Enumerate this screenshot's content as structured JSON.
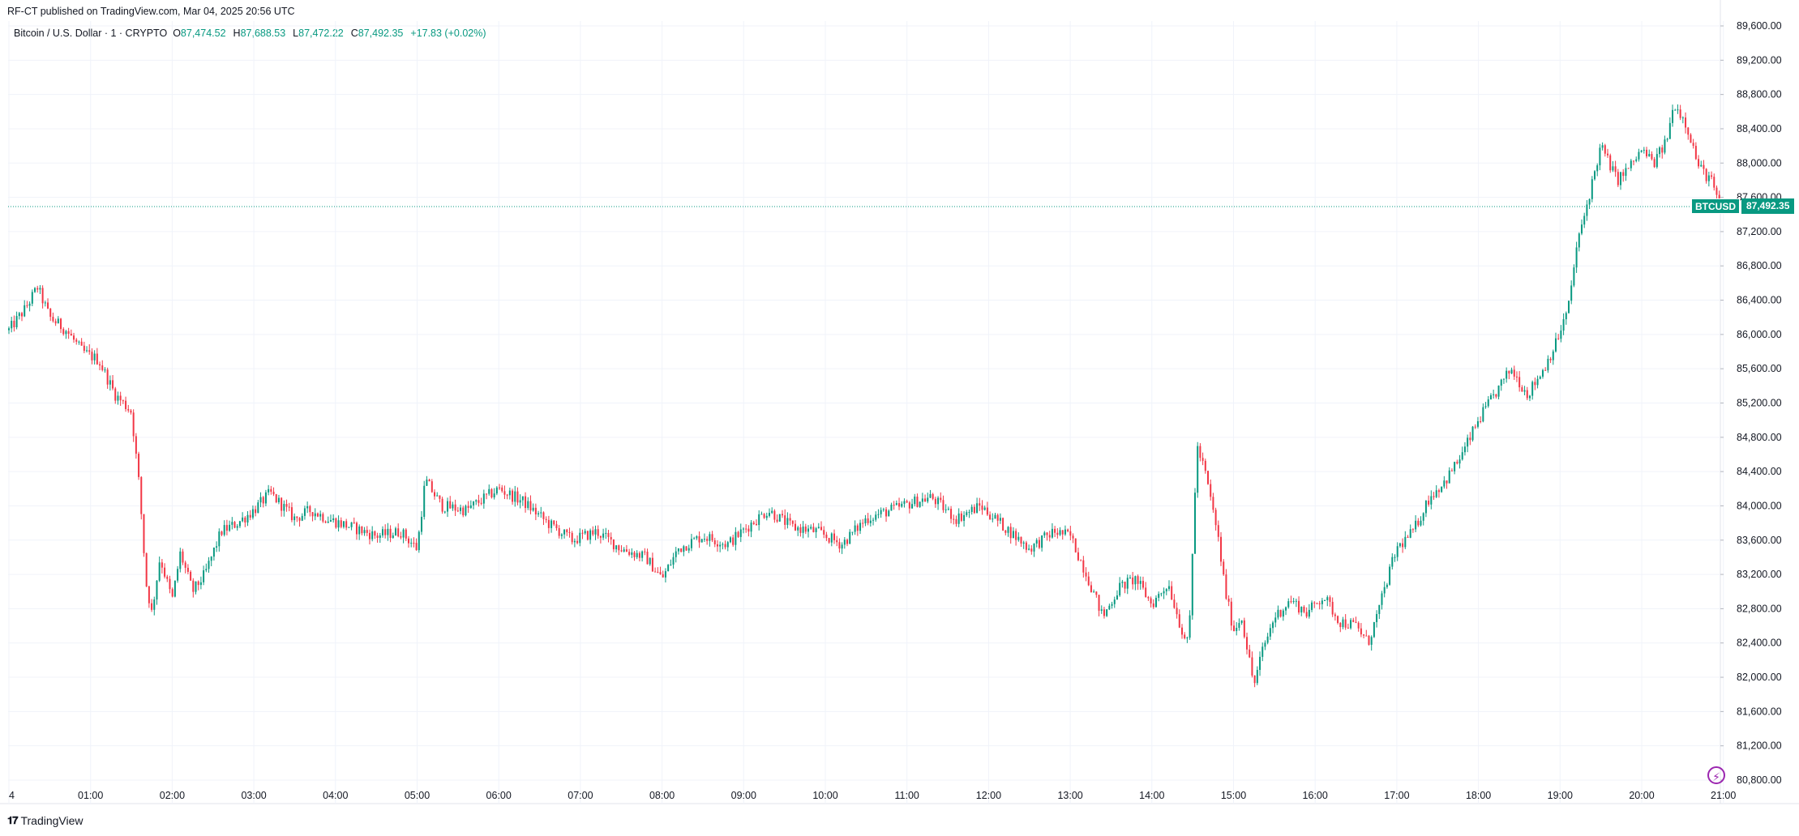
{
  "header": {
    "published": "RF-CT published on TradingView.com, Mar 04, 2025 20:56 UTC"
  },
  "legend": {
    "symbol": "Bitcoin / U.S. Dollar · 1 · CRYPTO",
    "o_label": "O",
    "o_value": "87,474.52",
    "h_label": "H",
    "h_value": "87,688.53",
    "l_label": "L",
    "l_value": "87,472.22",
    "c_label": "C",
    "c_value": "87,492.35",
    "change": "+17.83 (+0.02%)"
  },
  "price_badge": {
    "symbol": "BTCUSD",
    "price": "87,492.35"
  },
  "brand": {
    "name": "TradingView",
    "logo_icon": "tradingview-logo-icon"
  },
  "colors": {
    "up": "#089981",
    "down": "#f23645",
    "grid": "#f0f3fa",
    "text": "#131722",
    "accent": "#9c27b0"
  },
  "chart_data": {
    "type": "candlestick",
    "symbol": "BTCUSD",
    "interval": "1",
    "ylim": [
      80800,
      89600
    ],
    "y_ticks": [
      "80,800.00",
      "81,200.00",
      "81,600.00",
      "82,000.00",
      "82,400.00",
      "82,800.00",
      "83,200.00",
      "83,600.00",
      "84,000.00",
      "84,400.00",
      "84,800.00",
      "85,200.00",
      "85,600.00",
      "86,000.00",
      "86,400.00",
      "86,800.00",
      "87,200.00",
      "87,600.00",
      "88,000.00",
      "88,400.00",
      "88,800.00",
      "89,200.00",
      "89,600.00"
    ],
    "x_ticks": [
      "4",
      "01:00",
      "02:00",
      "03:00",
      "04:00",
      "05:00",
      "06:00",
      "07:00",
      "08:00",
      "09:00",
      "10:00",
      "11:00",
      "12:00",
      "13:00",
      "14:00",
      "15:00",
      "16:00",
      "17:00",
      "18:00",
      "19:00",
      "20:00",
      "21:00"
    ],
    "x_tick_hours": [
      0,
      1,
      2,
      3,
      4,
      5,
      6,
      7,
      8,
      9,
      10,
      11,
      12,
      13,
      14,
      15,
      16,
      17,
      18,
      19,
      20,
      21
    ],
    "last_price": 87492.35,
    "grid": true,
    "path_hours": [
      0,
      0.2,
      0.35,
      0.5,
      0.7,
      0.9,
      1.1,
      1.3,
      1.5,
      1.6,
      1.68,
      1.75,
      1.85,
      2.0,
      2.1,
      2.25,
      2.4,
      2.6,
      2.8,
      3.0,
      3.2,
      3.5,
      3.7,
      3.9,
      4.2,
      4.5,
      4.8,
      5.0,
      5.1,
      5.3,
      5.6,
      6.0,
      6.3,
      6.6,
      6.9,
      7.2,
      7.5,
      7.8,
      8.0,
      8.2,
      8.5,
      8.8,
      9.1,
      9.3,
      9.6,
      9.9,
      10.2,
      10.5,
      10.8,
      11.1,
      11.3,
      11.6,
      11.9,
      12.2,
      12.5,
      12.8,
      13.0,
      13.2,
      13.4,
      13.6,
      13.8,
      14.0,
      14.2,
      14.35,
      14.45,
      14.55,
      14.65,
      14.8,
      14.9,
      15.0,
      15.1,
      15.25,
      15.35,
      15.5,
      15.7,
      15.9,
      16.1,
      16.3,
      16.5,
      16.65,
      16.8,
      16.9,
      17.0,
      17.2,
      17.4,
      17.6,
      17.8,
      18.0,
      18.2,
      18.4,
      18.6,
      18.8,
      18.95,
      19.1,
      19.2,
      19.35,
      19.5,
      19.7,
      19.85,
      20.0,
      20.15,
      20.3,
      20.4,
      20.55,
      20.7,
      20.85,
      20.95
    ],
    "path_prices": [
      86050,
      86300,
      86550,
      86200,
      86050,
      85800,
      85700,
      85300,
      85100,
      84200,
      83100,
      82750,
      83400,
      82900,
      83450,
      83000,
      83200,
      83700,
      83800,
      83950,
      84150,
      83850,
      83950,
      83850,
      83750,
      83650,
      83700,
      83500,
      84300,
      84000,
      83950,
      84200,
      84050,
      83800,
      83600,
      83700,
      83500,
      83400,
      83150,
      83500,
      83650,
      83550,
      83800,
      83950,
      83750,
      83700,
      83550,
      83850,
      83950,
      84050,
      84100,
      83850,
      84000,
      83750,
      83500,
      83700,
      83650,
      83200,
      82700,
      83050,
      83150,
      82850,
      83100,
      82600,
      82350,
      84700,
      84400,
      83700,
      83000,
      82550,
      82700,
      81900,
      82300,
      82700,
      82900,
      82750,
      82950,
      82650,
      82600,
      82400,
      82850,
      83200,
      83500,
      83700,
      84100,
      84300,
      84600,
      85000,
      85300,
      85600,
      85300,
      85600,
      85900,
      86300,
      87000,
      87600,
      88200,
      87800,
      87950,
      88150,
      88000,
      88250,
      88700,
      88450,
      87950,
      87800,
      87490
    ],
    "candle_count": 660,
    "candle_minutes": 1.909
  }
}
